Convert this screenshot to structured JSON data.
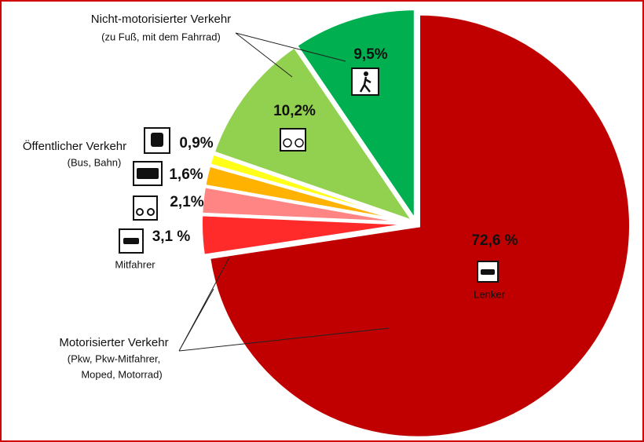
{
  "chart_data": {
    "type": "pie",
    "categories": [
      null,
      null,
      null,
      null,
      null,
      null,
      null
    ],
    "values": [
      72.6,
      3.1,
      2.1,
      1.6,
      0.9,
      10.2,
      9.5
    ],
    "value_labels": [
      "72,6 %",
      "3,1 %",
      "2,1%",
      "1,6%",
      "0,9%",
      "10,2%",
      "9,5%"
    ],
    "colors": [
      "#c00000",
      "#ff2a2a",
      "#ff8585",
      "#ffb300",
      "#ffff1a",
      "#92d050",
      "#00b050"
    ],
    "annotations": [
      "Nicht-motorisierter Verkehr",
      "(zu Fuß, mit dem Fahrrad)",
      "Öffentlicher Verkehr",
      "(Bus, Bahn)",
      "Mitfahrer",
      "Lenker",
      "Motorisierter Verkehr",
      "(Pkw, Pkw-Mitfahrer,",
      "Moped, Motorrad)"
    ]
  }
}
